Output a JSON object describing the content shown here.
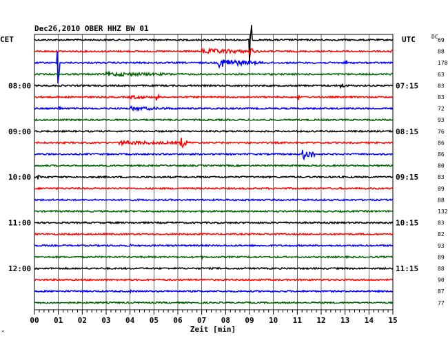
{
  "chart_data": {
    "type": "line",
    "title": "Dec26,2010   OBER HHZ BW 01",
    "xlabel": "Zeit [min]",
    "left_timezone": "CET",
    "right_timezone": "UTC",
    "dc_label": "DC",
    "corner_mark": "^",
    "xlim": [
      0,
      15
    ],
    "x_ticks": [
      "00",
      "01",
      "02",
      "03",
      "04",
      "05",
      "06",
      "07",
      "08",
      "09",
      "10",
      "11",
      "12",
      "13",
      "14",
      "15"
    ],
    "left_hour_labels": [
      {
        "row": 4,
        "text": "08:00"
      },
      {
        "row": 8,
        "text": "09:00"
      },
      {
        "row": 12,
        "text": "10:00"
      },
      {
        "row": 16,
        "text": "11:00"
      },
      {
        "row": 20,
        "text": "12:00"
      }
    ],
    "right_time_labels": [
      {
        "row": 4,
        "text": "07:15"
      },
      {
        "row": 8,
        "text": "08:15"
      },
      {
        "row": 12,
        "text": "09:15"
      },
      {
        "row": 16,
        "text": "10:15"
      },
      {
        "row": 20,
        "text": "11:15"
      }
    ],
    "trace_colors": [
      "#000000",
      "#ff0000",
      "#0000ff",
      "#006400"
    ],
    "dc_values": [
      "69",
      "88",
      "178",
      "63",
      "83",
      "83",
      "72",
      "93",
      "76",
      "86",
      "86",
      "80",
      "83",
      "89",
      "88",
      "132",
      "83",
      "82",
      "93",
      "89",
      "88",
      "90",
      "87",
      "77"
    ],
    "events": [
      {
        "row": 0,
        "start_min": 9.0,
        "dur_min": 0.1,
        "amp": 50
      },
      {
        "row": 1,
        "start_min": 7.0,
        "dur_min": 2.5,
        "amp": 4
      },
      {
        "row": 1,
        "start_min": 9.0,
        "dur_min": 0.15,
        "amp": 8
      },
      {
        "row": 1,
        "start_min": 14.9,
        "dur_min": 0.1,
        "amp": 4
      },
      {
        "row": 2,
        "start_min": 0.95,
        "dur_min": 0.1,
        "amp": 40
      },
      {
        "row": 2,
        "start_min": 7.7,
        "dur_min": 1.2,
        "amp": 7
      },
      {
        "row": 2,
        "start_min": 8.9,
        "dur_min": 0.8,
        "amp": 3
      },
      {
        "row": 2,
        "start_min": 13.0,
        "dur_min": 0.1,
        "amp": 7
      },
      {
        "row": 3,
        "start_min": 3.0,
        "dur_min": 3.5,
        "amp": 3
      },
      {
        "row": 4,
        "start_min": 12.8,
        "dur_min": 0.3,
        "amp": 4
      },
      {
        "row": 5,
        "start_min": 4.0,
        "dur_min": 1.0,
        "amp": 3
      },
      {
        "row": 5,
        "start_min": 5.1,
        "dur_min": 0.1,
        "amp": 8
      },
      {
        "row": 5,
        "start_min": 11.0,
        "dur_min": 0.1,
        "amp": 10
      },
      {
        "row": 6,
        "start_min": 1.0,
        "dur_min": 0.1,
        "amp": 6
      },
      {
        "row": 6,
        "start_min": 4.0,
        "dur_min": 2.0,
        "amp": 3
      },
      {
        "row": 9,
        "start_min": 3.5,
        "dur_min": 3.5,
        "amp": 3
      },
      {
        "row": 9,
        "start_min": 6.1,
        "dur_min": 0.3,
        "amp": 9
      },
      {
        "row": 10,
        "start_min": 11.2,
        "dur_min": 0.6,
        "amp": 8
      },
      {
        "row": 12,
        "start_min": 0.1,
        "dur_min": 0.2,
        "amp": 4
      },
      {
        "row": 14,
        "start_min": 8.8,
        "dur_min": 0.2,
        "amp": 3
      },
      {
        "row": 18,
        "start_min": 4.0,
        "dur_min": 0.1,
        "amp": 4
      },
      {
        "row": 19,
        "start_min": 7.0,
        "dur_min": 0.1,
        "amp": 3
      },
      {
        "row": 22,
        "start_min": 4.0,
        "dur_min": 0.1,
        "amp": 3
      }
    ]
  }
}
